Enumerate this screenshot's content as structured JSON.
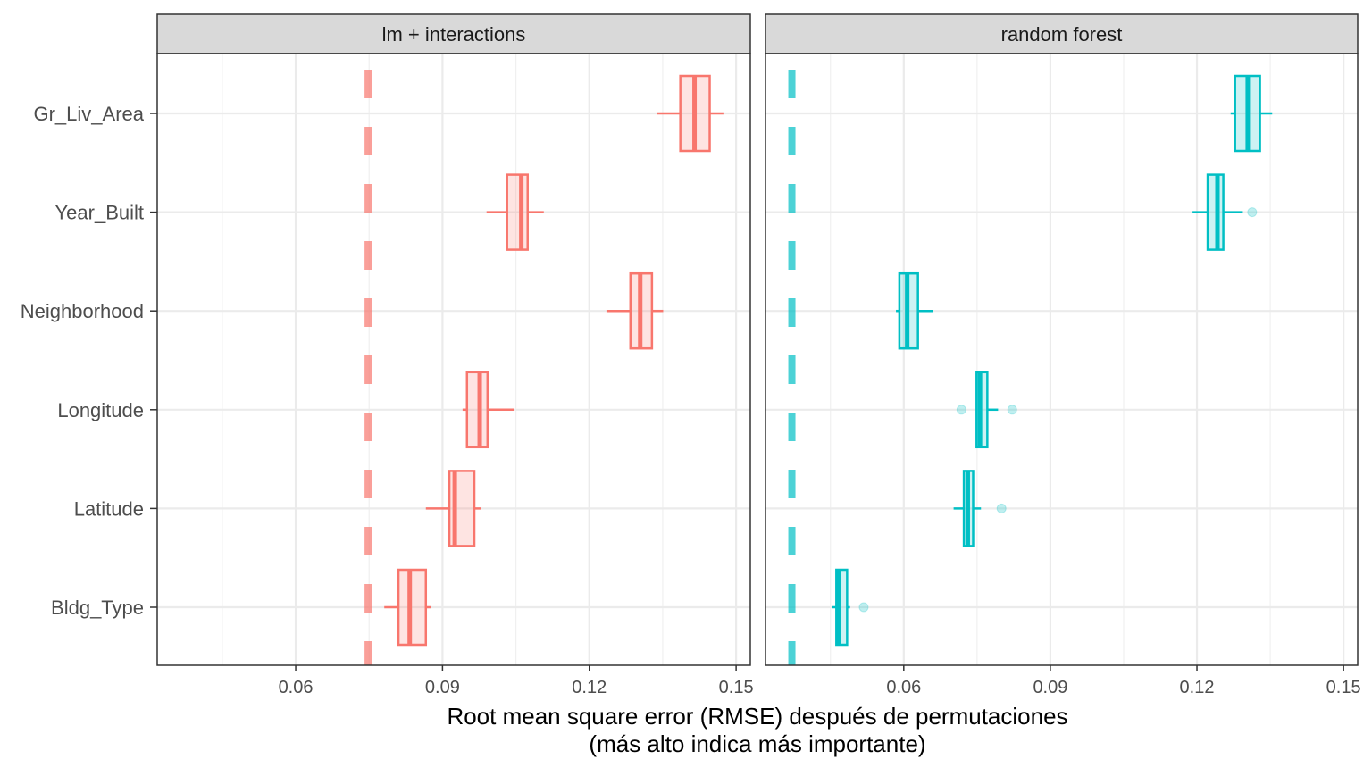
{
  "chart_data": {
    "type": "boxplot",
    "xlabel": "Root mean square error (RMSE) después de permutaciones",
    "xlabel2": "(más alto indica más importante)",
    "xlim": [
      0.0317,
      0.1529
    ],
    "xticks": [
      0.06,
      0.09,
      0.12,
      0.15
    ],
    "xtick_labels": [
      "0.06",
      "0.09",
      "0.12",
      "0.15"
    ],
    "grid": true,
    "categories": [
      "Gr_Liv_Area",
      "Year_Built",
      "Neighborhood",
      "Longitude",
      "Latitude",
      "Bldg_Type"
    ],
    "panels": [
      {
        "title": "lm + interactions",
        "color": "#F8766D",
        "baseline_rmse": 0.0748,
        "boxes": [
          {
            "min": 0.1339,
            "q1": 0.1386,
            "median": 0.1415,
            "q3": 0.1446,
            "max": 0.1474,
            "outliers": []
          },
          {
            "min": 0.099,
            "q1": 0.1032,
            "median": 0.1061,
            "q3": 0.1074,
            "max": 0.1107,
            "outliers": []
          },
          {
            "min": 0.1235,
            "q1": 0.1284,
            "median": 0.1304,
            "q3": 0.1328,
            "max": 0.1351,
            "outliers": []
          },
          {
            "min": 0.0941,
            "q1": 0.095,
            "median": 0.0976,
            "q3": 0.0992,
            "max": 0.1047,
            "outliers": []
          },
          {
            "min": 0.0866,
            "q1": 0.0914,
            "median": 0.0925,
            "q3": 0.0965,
            "max": 0.0978,
            "outliers": []
          },
          {
            "min": 0.0781,
            "q1": 0.081,
            "median": 0.0833,
            "q3": 0.0866,
            "max": 0.0877,
            "outliers": []
          }
        ]
      },
      {
        "title": "random forest",
        "color": "#00BFC4",
        "baseline_rmse": 0.0371,
        "boxes": [
          {
            "min": 0.1269,
            "q1": 0.1278,
            "median": 0.1304,
            "q3": 0.1329,
            "max": 0.1354,
            "outliers": []
          },
          {
            "min": 0.1191,
            "q1": 0.1222,
            "median": 0.1242,
            "q3": 0.1254,
            "max": 0.1294,
            "outliers": [
              0.1313
            ]
          },
          {
            "min": 0.0584,
            "q1": 0.0591,
            "median": 0.0607,
            "q3": 0.0629,
            "max": 0.066,
            "outliers": []
          },
          {
            "min": 0.0749,
            "q1": 0.0749,
            "median": 0.0756,
            "q3": 0.0771,
            "max": 0.0793,
            "outliers": [
              0.0718,
              0.0822
            ]
          },
          {
            "min": 0.0702,
            "q1": 0.0723,
            "median": 0.0731,
            "q3": 0.0742,
            "max": 0.0758,
            "outliers": [
              0.08
            ]
          },
          {
            "min": 0.0453,
            "q1": 0.0462,
            "median": 0.0467,
            "q3": 0.0484,
            "max": 0.049,
            "outliers": [
              0.0518
            ]
          }
        ]
      }
    ]
  }
}
